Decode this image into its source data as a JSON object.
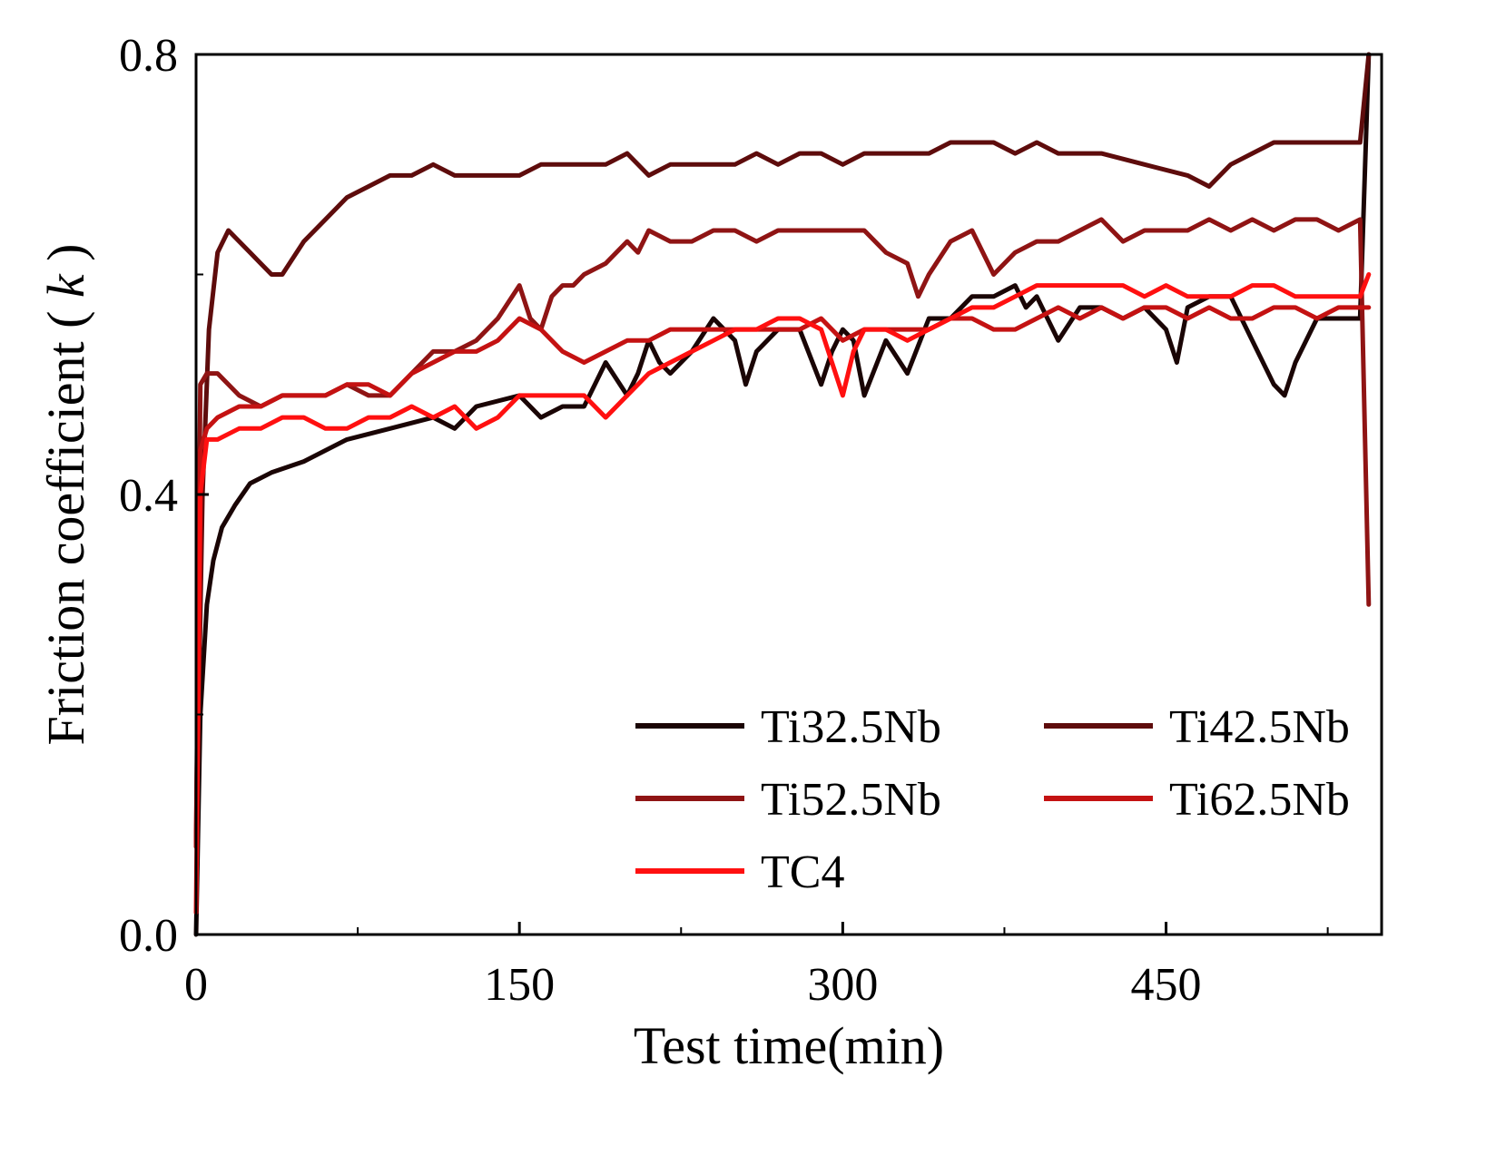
{
  "chart_data": {
    "type": "line",
    "xlabel": "Test time(min)",
    "ylabel": "Friction coefficient ( k )",
    "ylabel_text": "Friction coefficient ( ",
    "ylabel_symbol": "k",
    "ylabel_close": " )",
    "xlim": [
      0,
      550
    ],
    "ylim": [
      0.0,
      0.8
    ],
    "x_ticks": [
      0,
      150,
      300,
      450
    ],
    "x_tick_labels": [
      "0",
      "150",
      "300",
      "450"
    ],
    "y_ticks": [
      0.0,
      0.4,
      0.8
    ],
    "y_tick_labels": [
      "0.0",
      "0.4",
      "0.8"
    ],
    "grid": false,
    "legend_position": "lower-right",
    "series": [
      {
        "name": "Ti32.5Nb",
        "color": "#1a0505",
        "x": [
          0,
          2,
          5,
          8,
          12,
          18,
          25,
          35,
          50,
          70,
          90,
          110,
          120,
          130,
          150,
          160,
          170,
          180,
          185,
          190,
          200,
          205,
          210,
          215,
          220,
          230,
          240,
          250,
          255,
          260,
          270,
          280,
          290,
          295,
          300,
          305,
          310,
          320,
          330,
          340,
          350,
          360,
          370,
          380,
          385,
          390,
          400,
          410,
          420,
          430,
          440,
          450,
          455,
          460,
          470,
          480,
          490,
          500,
          505,
          510,
          520,
          530,
          540,
          544
        ],
        "y": [
          0.0,
          0.2,
          0.3,
          0.34,
          0.37,
          0.39,
          0.41,
          0.42,
          0.43,
          0.45,
          0.46,
          0.47,
          0.46,
          0.48,
          0.49,
          0.47,
          0.48,
          0.48,
          0.5,
          0.52,
          0.49,
          0.51,
          0.54,
          0.52,
          0.51,
          0.53,
          0.56,
          0.54,
          0.5,
          0.53,
          0.55,
          0.55,
          0.5,
          0.53,
          0.55,
          0.54,
          0.49,
          0.54,
          0.51,
          0.56,
          0.56,
          0.58,
          0.58,
          0.59,
          0.57,
          0.58,
          0.54,
          0.57,
          0.57,
          0.56,
          0.57,
          0.55,
          0.52,
          0.57,
          0.58,
          0.58,
          0.54,
          0.5,
          0.49,
          0.52,
          0.56,
          0.56,
          0.56,
          0.8
        ]
      },
      {
        "name": "Ti42.5Nb",
        "color": "#5e0c0c",
        "x": [
          0,
          3,
          6,
          10,
          15,
          20,
          25,
          30,
          35,
          40,
          50,
          60,
          70,
          80,
          90,
          100,
          110,
          120,
          130,
          140,
          150,
          160,
          170,
          180,
          190,
          200,
          210,
          220,
          230,
          240,
          250,
          260,
          270,
          280,
          290,
          300,
          310,
          320,
          330,
          340,
          350,
          360,
          370,
          380,
          390,
          400,
          420,
          440,
          460,
          470,
          480,
          490,
          500,
          520,
          530,
          540,
          544
        ],
        "y": [
          0.08,
          0.4,
          0.55,
          0.62,
          0.64,
          0.63,
          0.62,
          0.61,
          0.6,
          0.6,
          0.63,
          0.65,
          0.67,
          0.68,
          0.69,
          0.69,
          0.7,
          0.69,
          0.69,
          0.69,
          0.69,
          0.7,
          0.7,
          0.7,
          0.7,
          0.71,
          0.69,
          0.7,
          0.7,
          0.7,
          0.7,
          0.71,
          0.7,
          0.71,
          0.71,
          0.7,
          0.71,
          0.71,
          0.71,
          0.71,
          0.72,
          0.72,
          0.72,
          0.71,
          0.72,
          0.71,
          0.71,
          0.7,
          0.69,
          0.68,
          0.7,
          0.71,
          0.72,
          0.72,
          0.72,
          0.72,
          0.8
        ]
      },
      {
        "name": "Ti52.5Nb",
        "color": "#8f1414",
        "x": [
          0,
          2,
          5,
          10,
          20,
          30,
          40,
          50,
          60,
          70,
          80,
          90,
          100,
          110,
          120,
          130,
          140,
          150,
          155,
          160,
          165,
          170,
          175,
          180,
          190,
          200,
          205,
          210,
          220,
          230,
          240,
          250,
          260,
          270,
          280,
          290,
          300,
          310,
          320,
          330,
          335,
          340,
          350,
          360,
          370,
          380,
          390,
          400,
          410,
          420,
          430,
          440,
          450,
          460,
          470,
          480,
          490,
          500,
          510,
          520,
          530,
          540,
          544
        ],
        "y": [
          0.08,
          0.5,
          0.51,
          0.51,
          0.49,
          0.48,
          0.49,
          0.49,
          0.49,
          0.5,
          0.49,
          0.49,
          0.51,
          0.53,
          0.53,
          0.54,
          0.56,
          0.59,
          0.56,
          0.55,
          0.58,
          0.59,
          0.59,
          0.6,
          0.61,
          0.63,
          0.62,
          0.64,
          0.63,
          0.63,
          0.64,
          0.64,
          0.63,
          0.64,
          0.64,
          0.64,
          0.64,
          0.64,
          0.62,
          0.61,
          0.58,
          0.6,
          0.63,
          0.64,
          0.6,
          0.62,
          0.63,
          0.63,
          0.64,
          0.65,
          0.63,
          0.64,
          0.64,
          0.64,
          0.65,
          0.64,
          0.65,
          0.64,
          0.65,
          0.65,
          0.64,
          0.65,
          0.3
        ]
      },
      {
        "name": "Ti62.5Nb",
        "color": "#c41212",
        "x": [
          0,
          2,
          5,
          10,
          20,
          30,
          40,
          50,
          60,
          70,
          80,
          90,
          100,
          110,
          120,
          130,
          140,
          150,
          160,
          170,
          180,
          190,
          200,
          210,
          220,
          230,
          240,
          250,
          260,
          270,
          280,
          290,
          300,
          310,
          320,
          330,
          340,
          350,
          360,
          370,
          380,
          390,
          400,
          410,
          420,
          430,
          440,
          450,
          460,
          470,
          480,
          490,
          500,
          510,
          520,
          530,
          540,
          544
        ],
        "y": [
          0.08,
          0.44,
          0.46,
          0.47,
          0.48,
          0.48,
          0.49,
          0.49,
          0.49,
          0.5,
          0.5,
          0.49,
          0.51,
          0.52,
          0.53,
          0.53,
          0.54,
          0.56,
          0.55,
          0.53,
          0.52,
          0.53,
          0.54,
          0.54,
          0.55,
          0.55,
          0.55,
          0.55,
          0.55,
          0.55,
          0.55,
          0.56,
          0.54,
          0.55,
          0.55,
          0.55,
          0.55,
          0.56,
          0.56,
          0.55,
          0.55,
          0.56,
          0.57,
          0.56,
          0.57,
          0.56,
          0.57,
          0.57,
          0.56,
          0.57,
          0.56,
          0.56,
          0.57,
          0.57,
          0.56,
          0.57,
          0.57,
          0.57
        ]
      },
      {
        "name": "TC4",
        "color": "#ff1010",
        "x": [
          0,
          2,
          5,
          10,
          20,
          30,
          40,
          50,
          60,
          70,
          80,
          90,
          100,
          110,
          120,
          125,
          130,
          140,
          150,
          160,
          170,
          180,
          190,
          200,
          210,
          220,
          230,
          240,
          250,
          260,
          270,
          280,
          290,
          295,
          300,
          305,
          310,
          320,
          330,
          340,
          350,
          360,
          370,
          380,
          390,
          400,
          410,
          420,
          430,
          440,
          450,
          460,
          470,
          480,
          490,
          500,
          510,
          520,
          530,
          540,
          544
        ],
        "y": [
          0.02,
          0.4,
          0.45,
          0.45,
          0.46,
          0.46,
          0.47,
          0.47,
          0.46,
          0.46,
          0.47,
          0.47,
          0.48,
          0.47,
          0.48,
          0.47,
          0.46,
          0.47,
          0.49,
          0.49,
          0.49,
          0.49,
          0.47,
          0.49,
          0.51,
          0.52,
          0.53,
          0.54,
          0.55,
          0.55,
          0.56,
          0.56,
          0.55,
          0.52,
          0.49,
          0.53,
          0.55,
          0.55,
          0.54,
          0.55,
          0.56,
          0.57,
          0.57,
          0.58,
          0.59,
          0.59,
          0.59,
          0.59,
          0.59,
          0.58,
          0.59,
          0.58,
          0.58,
          0.58,
          0.59,
          0.59,
          0.58,
          0.58,
          0.58,
          0.58,
          0.6
        ]
      }
    ]
  }
}
